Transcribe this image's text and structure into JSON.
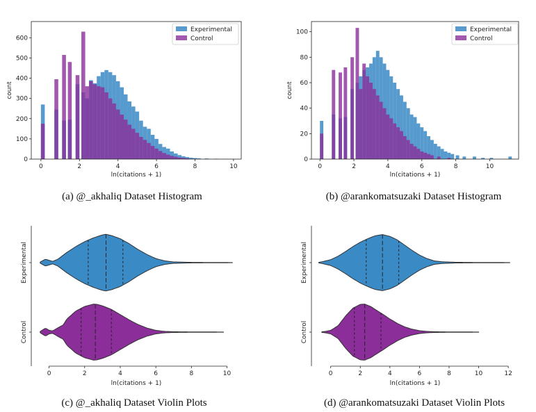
{
  "colors": {
    "experimental": "#3a8ac6",
    "control": "#8b2e9a",
    "edge": "#333333"
  },
  "chart_data": [
    {
      "type": "histogram",
      "caption": "(a) @_akhaliq Dataset Histogram",
      "xlabel": "ln(citations + 1)",
      "ylabel": "count",
      "xlim": [
        -0.5,
        10.4
      ],
      "ylim": [
        0,
        680
      ],
      "xticks": [
        "0",
        "2",
        "4",
        "6",
        "8",
        "10"
      ],
      "xtick_values": [
        0,
        2,
        4,
        6,
        8,
        10
      ],
      "yticks": [
        "0",
        "100",
        "200",
        "300",
        "400",
        "500",
        "600"
      ],
      "ytick_values": [
        0,
        100,
        200,
        300,
        400,
        500,
        600
      ],
      "legend": [
        "Experimental",
        "Control"
      ],
      "legend_position": "top-right",
      "series": [
        {
          "name": "Experimental",
          "points": [
            [
              0.0,
              270
            ],
            [
              0.7,
              245
            ],
            [
              1.1,
              190
            ],
            [
              1.4,
              195
            ],
            [
              1.8,
              370
            ],
            [
              2.1,
              330
            ],
            [
              2.3,
              300
            ],
            [
              2.5,
              390
            ],
            [
              2.7,
              375
            ],
            [
              2.9,
              410
            ],
            [
              3.1,
              430
            ],
            [
              3.3,
              440
            ],
            [
              3.5,
              430
            ],
            [
              3.7,
              415
            ],
            [
              3.9,
              385
            ],
            [
              4.1,
              355
            ],
            [
              4.3,
              320
            ],
            [
              4.5,
              285
            ],
            [
              4.7,
              260
            ],
            [
              4.9,
              235
            ],
            [
              5.1,
              190
            ],
            [
              5.3,
              160
            ],
            [
              5.5,
              150
            ],
            [
              5.7,
              120
            ],
            [
              5.9,
              100
            ],
            [
              6.1,
              75
            ],
            [
              6.3,
              60
            ],
            [
              6.5,
              52
            ],
            [
              6.7,
              38
            ],
            [
              6.9,
              28
            ],
            [
              7.1,
              20
            ],
            [
              7.3,
              14
            ],
            [
              7.5,
              10
            ],
            [
              7.7,
              7
            ],
            [
              7.9,
              5
            ],
            [
              8.1,
              4
            ],
            [
              8.5,
              3
            ],
            [
              9.0,
              2
            ],
            [
              9.5,
              1
            ]
          ]
        },
        {
          "name": "Control",
          "points": [
            [
              0.0,
              175
            ],
            [
              0.7,
              395
            ],
            [
              1.1,
              515
            ],
            [
              1.4,
              480
            ],
            [
              1.8,
              415
            ],
            [
              2.1,
              630
            ],
            [
              2.3,
              360
            ],
            [
              2.5,
              385
            ],
            [
              2.7,
              370
            ],
            [
              2.9,
              360
            ],
            [
              3.1,
              355
            ],
            [
              3.3,
              330
            ],
            [
              3.5,
              300
            ],
            [
              3.7,
              275
            ],
            [
              3.9,
              245
            ],
            [
              4.1,
              220
            ],
            [
              4.3,
              195
            ],
            [
              4.5,
              170
            ],
            [
              4.7,
              150
            ],
            [
              4.9,
              130
            ],
            [
              5.1,
              110
            ],
            [
              5.3,
              95
            ],
            [
              5.5,
              80
            ],
            [
              5.7,
              65
            ],
            [
              5.9,
              52
            ],
            [
              6.1,
              40
            ],
            [
              6.3,
              30
            ],
            [
              6.5,
              22
            ],
            [
              6.7,
              16
            ],
            [
              6.9,
              12
            ],
            [
              7.1,
              8
            ],
            [
              7.3,
              6
            ],
            [
              7.5,
              4
            ],
            [
              7.9,
              2
            ],
            [
              8.5,
              1
            ]
          ]
        }
      ]
    },
    {
      "type": "histogram",
      "caption": "(b) @arankomatsuzaki Dataset Histogram",
      "xlabel": "ln(citations + 1)",
      "ylabel": "count",
      "xlim": [
        -0.5,
        11.7
      ],
      "ylim": [
        0,
        108
      ],
      "xticks": [
        "0",
        "2",
        "4",
        "6",
        "8",
        "10"
      ],
      "xtick_values": [
        0,
        2,
        4,
        6,
        8,
        10
      ],
      "yticks": [
        "0",
        "20",
        "40",
        "60",
        "80",
        "100"
      ],
      "ytick_values": [
        0,
        20,
        40,
        60,
        80,
        100
      ],
      "legend": [
        "Experimental",
        "Control"
      ],
      "legend_position": "top-right",
      "series": [
        {
          "name": "Experimental",
          "points": [
            [
              0.0,
              30
            ],
            [
              0.7,
              35
            ],
            [
              1.1,
              32
            ],
            [
              1.4,
              33
            ],
            [
              1.8,
              55
            ],
            [
              2.1,
              60
            ],
            [
              2.3,
              65
            ],
            [
              2.5,
              70
            ],
            [
              2.7,
              72
            ],
            [
              2.9,
              75
            ],
            [
              3.1,
              80
            ],
            [
              3.3,
              85
            ],
            [
              3.5,
              80
            ],
            [
              3.7,
              75
            ],
            [
              3.9,
              70
            ],
            [
              4.1,
              65
            ],
            [
              4.3,
              60
            ],
            [
              4.5,
              55
            ],
            [
              4.7,
              50
            ],
            [
              4.9,
              45
            ],
            [
              5.1,
              40
            ],
            [
              5.3,
              35
            ],
            [
              5.5,
              33
            ],
            [
              5.7,
              28
            ],
            [
              5.9,
              25
            ],
            [
              6.1,
              22
            ],
            [
              6.3,
              18
            ],
            [
              6.5,
              15
            ],
            [
              6.7,
              12
            ],
            [
              6.9,
              10
            ],
            [
              7.1,
              8
            ],
            [
              7.3,
              6
            ],
            [
              7.5,
              5
            ],
            [
              7.7,
              4
            ],
            [
              8.0,
              3
            ],
            [
              8.4,
              2
            ],
            [
              9.0,
              2
            ],
            [
              9.5,
              1
            ],
            [
              10.0,
              1
            ],
            [
              11.1,
              2
            ]
          ]
        },
        {
          "name": "Control",
          "points": [
            [
              0.0,
              20
            ],
            [
              0.7,
              70
            ],
            [
              1.1,
              68
            ],
            [
              1.4,
              72
            ],
            [
              1.8,
              80
            ],
            [
              2.1,
              103
            ],
            [
              2.3,
              55
            ],
            [
              2.5,
              75
            ],
            [
              2.7,
              65
            ],
            [
              2.9,
              60
            ],
            [
              3.1,
              55
            ],
            [
              3.3,
              50
            ],
            [
              3.5,
              45
            ],
            [
              3.7,
              40
            ],
            [
              3.9,
              35
            ],
            [
              4.1,
              32
            ],
            [
              4.3,
              28
            ],
            [
              4.5,
              25
            ],
            [
              4.7,
              22
            ],
            [
              4.9,
              18
            ],
            [
              5.1,
              15
            ],
            [
              5.3,
              12
            ],
            [
              5.5,
              10
            ],
            [
              5.7,
              8
            ],
            [
              5.9,
              6
            ],
            [
              6.1,
              5
            ],
            [
              6.3,
              4
            ],
            [
              6.5,
              3
            ],
            [
              6.9,
              2
            ],
            [
              7.5,
              1
            ]
          ]
        }
      ]
    },
    {
      "type": "violin",
      "caption": "(c) @_akhaliq Dataset Violin Plots",
      "xlabel": "ln(citations + 1)",
      "xlim": [
        -1.0,
        10.8
      ],
      "xticks": [
        "0",
        "2",
        "4",
        "6",
        "8",
        "10"
      ],
      "xtick_values": [
        0,
        2,
        4,
        6,
        8,
        10
      ],
      "categories": [
        "Experimental",
        "Control"
      ],
      "violins": [
        {
          "name": "Experimental",
          "color": "experimental",
          "quartiles": [
            2.2,
            3.2,
            4.15
          ],
          "profile": [
            [
              -0.5,
              0.02
            ],
            [
              -0.2,
              0.12
            ],
            [
              0.0,
              0.08
            ],
            [
              0.2,
              0.04
            ],
            [
              0.5,
              0.12
            ],
            [
              1.0,
              0.35
            ],
            [
              1.5,
              0.55
            ],
            [
              2.0,
              0.72
            ],
            [
              2.5,
              0.85
            ],
            [
              3.0,
              0.95
            ],
            [
              3.2,
              0.97
            ],
            [
              3.5,
              0.93
            ],
            [
              4.0,
              0.82
            ],
            [
              4.5,
              0.65
            ],
            [
              5.0,
              0.45
            ],
            [
              5.5,
              0.28
            ],
            [
              6.0,
              0.14
            ],
            [
              6.5,
              0.06
            ],
            [
              7.0,
              0.025
            ],
            [
              8.0,
              0.01
            ],
            [
              9.0,
              0.006
            ],
            [
              10.3,
              0.004
            ]
          ]
        },
        {
          "name": "Control",
          "color": "control",
          "quartiles": [
            1.8,
            2.6,
            3.5
          ],
          "profile": [
            [
              -0.5,
              0.02
            ],
            [
              -0.2,
              0.14
            ],
            [
              0.0,
              0.06
            ],
            [
              0.2,
              0.04
            ],
            [
              0.5,
              0.15
            ],
            [
              0.8,
              0.25
            ],
            [
              1.0,
              0.45
            ],
            [
              1.5,
              0.72
            ],
            [
              2.0,
              0.88
            ],
            [
              2.5,
              0.96
            ],
            [
              2.7,
              0.95
            ],
            [
              3.0,
              0.9
            ],
            [
              3.5,
              0.78
            ],
            [
              4.0,
              0.6
            ],
            [
              4.5,
              0.42
            ],
            [
              5.0,
              0.26
            ],
            [
              5.5,
              0.14
            ],
            [
              6.0,
              0.06
            ],
            [
              6.5,
              0.025
            ],
            [
              7.0,
              0.012
            ],
            [
              8.0,
              0.006
            ],
            [
              9.8,
              0.004
            ]
          ]
        }
      ]
    },
    {
      "type": "violin",
      "caption": "(d) @arankomatsuzaki Dataset Violin Plots",
      "xlabel": "ln(citations + 1)",
      "xlim": [
        -1.3,
        12.7
      ],
      "xticks": [
        "0",
        "2",
        "4",
        "6",
        "8",
        "10",
        "12"
      ],
      "xtick_values": [
        0,
        2,
        4,
        6,
        8,
        10,
        12
      ],
      "categories": [
        "Experimental",
        "Control"
      ],
      "violins": [
        {
          "name": "Experimental",
          "color": "experimental",
          "quartiles": [
            2.4,
            3.5,
            4.6
          ],
          "profile": [
            [
              -0.8,
              0.01
            ],
            [
              -0.5,
              0.04
            ],
            [
              0.0,
              0.1
            ],
            [
              0.5,
              0.22
            ],
            [
              1.0,
              0.38
            ],
            [
              1.5,
              0.55
            ],
            [
              2.0,
              0.7
            ],
            [
              2.5,
              0.82
            ],
            [
              3.0,
              0.92
            ],
            [
              3.5,
              0.96
            ],
            [
              4.0,
              0.9
            ],
            [
              4.5,
              0.78
            ],
            [
              5.0,
              0.6
            ],
            [
              5.5,
              0.42
            ],
            [
              6.0,
              0.26
            ],
            [
              6.5,
              0.14
            ],
            [
              7.0,
              0.06
            ],
            [
              7.5,
              0.03
            ],
            [
              8.5,
              0.012
            ],
            [
              10.0,
              0.006
            ],
            [
              12.1,
              0.004
            ]
          ]
        },
        {
          "name": "Control",
          "color": "control",
          "quartiles": [
            1.6,
            2.3,
            3.4
          ],
          "profile": [
            [
              -0.6,
              0.01
            ],
            [
              -0.3,
              0.03
            ],
            [
              0.0,
              0.06
            ],
            [
              0.5,
              0.22
            ],
            [
              1.0,
              0.55
            ],
            [
              1.5,
              0.82
            ],
            [
              2.0,
              0.95
            ],
            [
              2.3,
              0.96
            ],
            [
              2.7,
              0.88
            ],
            [
              3.0,
              0.78
            ],
            [
              3.5,
              0.62
            ],
            [
              4.0,
              0.45
            ],
            [
              4.5,
              0.3
            ],
            [
              5.0,
              0.18
            ],
            [
              5.5,
              0.1
            ],
            [
              6.0,
              0.05
            ],
            [
              6.5,
              0.025
            ],
            [
              7.0,
              0.012
            ],
            [
              8.0,
              0.006
            ],
            [
              10.0,
              0.004
            ]
          ]
        }
      ]
    }
  ]
}
